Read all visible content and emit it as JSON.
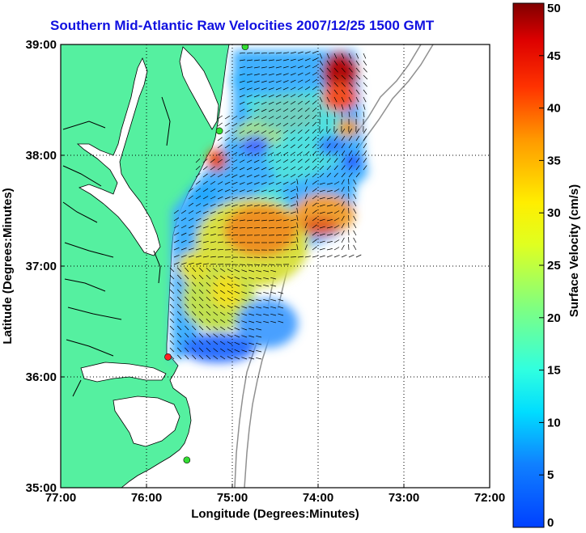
{
  "title": "Southern Mid-Atlantic Raw Velocities 2007/12/25 1500 GMT",
  "map": {
    "xlabel": "Longitude (Degrees:Minutes)",
    "ylabel": "Latitude (Degrees:Minutes)",
    "x_ticks": [
      "77:00",
      "76:00",
      "75:00",
      "74:00",
      "73:00",
      "72:00"
    ],
    "y_ticks": [
      "39:00",
      "38:00",
      "37:00",
      "36:00",
      "35:00"
    ],
    "lon_range": [
      -77,
      -72
    ],
    "lat_range": [
      35,
      39
    ],
    "land_color": "#55f0a0",
    "grid": "dotted",
    "stations": [
      {
        "lon": -74.85,
        "lat": 38.98,
        "color": "#33dd33"
      },
      {
        "lon": -75.15,
        "lat": 38.22,
        "color": "#33dd33"
      },
      {
        "lon": -75.75,
        "lat": 36.18,
        "color": "#ff2222"
      },
      {
        "lon": -75.53,
        "lat": 35.25,
        "color": "#33dd33"
      }
    ]
  },
  "colorbar": {
    "label": "Surface Velocity (cm/s)",
    "ticks": [
      "0",
      "5",
      "10",
      "15",
      "20",
      "25",
      "30",
      "35",
      "40",
      "45",
      "50"
    ],
    "min": 0,
    "max": 50
  }
}
